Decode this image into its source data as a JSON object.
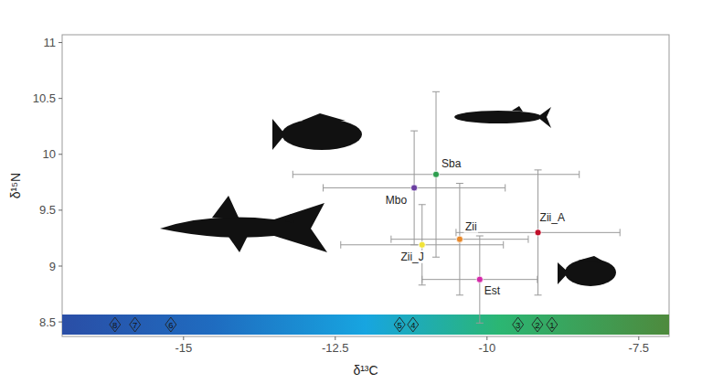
{
  "chart_data": {
    "type": "scatter",
    "x_label": "δ¹³C",
    "y_label": "δ¹⁵N",
    "labels": [
      "Sba",
      "Mbo",
      "Zii",
      "Zii_A",
      "Zii_J",
      "Est"
    ],
    "x": [
      -10.84,
      -11.2,
      -10.45,
      -9.16,
      -11.07,
      -10.12
    ],
    "values": [
      9.82,
      9.7,
      9.24,
      9.3,
      9.19,
      8.88
    ],
    "x_error": [
      2.36,
      1.5,
      1.13,
      1.35,
      1.34,
      0.95
    ],
    "y_error": [
      0.74,
      0.51,
      0.5,
      0.56,
      0.36,
      0.39
    ],
    "colors": [
      "#2e9e4f",
      "#6a3fa0",
      "#e8892b",
      "#c0102a",
      "#f1e33a",
      "#d428a8"
    ],
    "site_markers": {
      "labels": [
        1,
        2,
        3,
        4,
        5,
        6,
        7,
        8
      ],
      "x": [
        -8.93,
        -9.17,
        -9.49,
        -11.22,
        -11.44,
        -15.21,
        -15.8,
        -16.13
      ]
    },
    "xlim": [
      -17,
      -7
    ],
    "ylim": [
      8.37,
      11.07
    ],
    "xticks": [
      -15,
      -12.5,
      -10,
      -7.5
    ],
    "yticks": [
      8.5,
      9,
      9.5,
      10,
      10.5,
      11
    ],
    "grid": false
  }
}
